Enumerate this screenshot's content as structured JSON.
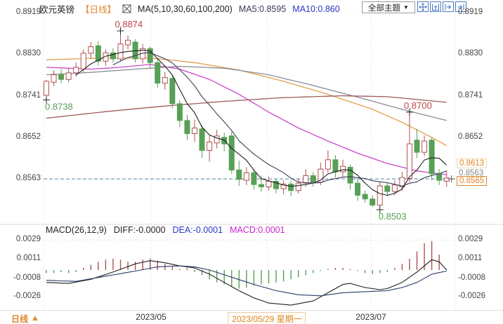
{
  "header": {
    "symbol": "欧元英镑",
    "period_tag": "【日线】",
    "ma_settings": "MA(5,10,30,60,100,200)",
    "ma5_label": "MA5:0.8595",
    "ma10_label": "MA10:0.860",
    "theme_selector": "全部主题",
    "theme_arrow": "▼"
  },
  "toolbar_icons": [
    "crosshair-move-icon",
    "zoom-fit-icon",
    "pan-right-icon",
    "jump-latest-icon"
  ],
  "bottom_bar": {
    "period": "日线",
    "arrow": "▲"
  },
  "x_axis": {
    "ticks": [
      {
        "text": "2023/05",
        "style": "normal"
      },
      {
        "text": "2023/05/29 星期一",
        "style": "selected"
      },
      {
        "text": "2023/07",
        "style": "normal"
      }
    ]
  },
  "chart_data": [
    {
      "type": "candlestick",
      "title": "欧元英镑 日线",
      "ylim": [
        0.8495,
        0.894
      ],
      "y_ticks": [
        "0.8919",
        "0.8830",
        "0.8741",
        "0.8652",
        "0.8563"
      ],
      "right_ticks": [
        "0.8919",
        "0.8830",
        "0.8741",
        "0.8652"
      ],
      "price_tags": [
        {
          "text": "0.8613",
          "style": "tag-orange"
        },
        {
          "text": "0.8563",
          "style": "tag-gray"
        },
        {
          "text": "0.8565",
          "style": "tag-box"
        }
      ],
      "dashed_level": 0.8563,
      "colors": {
        "up": "#b05050",
        "down": "#57a057",
        "dashed": "#4f81a8",
        "accent": "#e0862a"
      },
      "annotations": [
        {
          "text": "0.8874",
          "color": "#c24444",
          "i": 10,
          "v": 0.8874,
          "pos": "above"
        },
        {
          "text": "0.8738",
          "color": "#57a057",
          "i": 0,
          "v": 0.8738,
          "pos": "below"
        },
        {
          "text": "0.8700",
          "color": "#c24444",
          "i": 49,
          "v": 0.87,
          "pos": "above"
        },
        {
          "text": "0.8503",
          "color": "#57a057",
          "i": 45,
          "v": 0.8503,
          "pos": "below"
        }
      ],
      "candles": [
        [
          0.8742,
          0.8775,
          0.8738,
          0.8772
        ],
        [
          0.877,
          0.8795,
          0.8762,
          0.8786
        ],
        [
          0.8786,
          0.8798,
          0.8768,
          0.8776
        ],
        [
          0.8776,
          0.88,
          0.877,
          0.879
        ],
        [
          0.879,
          0.8812,
          0.8782,
          0.8802
        ],
        [
          0.8798,
          0.884,
          0.8792,
          0.8832
        ],
        [
          0.8832,
          0.8856,
          0.882,
          0.8846
        ],
        [
          0.8848,
          0.8858,
          0.8806,
          0.8815
        ],
        [
          0.8815,
          0.884,
          0.8805,
          0.8833
        ],
        [
          0.8833,
          0.8843,
          0.8812,
          0.882
        ],
        [
          0.882,
          0.8874,
          0.8815,
          0.8852
        ],
        [
          0.885,
          0.887,
          0.884,
          0.886
        ],
        [
          0.8856,
          0.8862,
          0.8812,
          0.882
        ],
        [
          0.882,
          0.8852,
          0.881,
          0.8842
        ],
        [
          0.8842,
          0.8846,
          0.88,
          0.8812
        ],
        [
          0.8812,
          0.882,
          0.8758,
          0.8768
        ],
        [
          0.8768,
          0.8792,
          0.8754,
          0.878
        ],
        [
          0.8778,
          0.8785,
          0.8714,
          0.8724
        ],
        [
          0.8724,
          0.8732,
          0.8674,
          0.8688
        ],
        [
          0.8688,
          0.87,
          0.8646,
          0.866
        ],
        [
          0.866,
          0.869,
          0.8642,
          0.8672
        ],
        [
          0.867,
          0.8678,
          0.8608,
          0.8624
        ],
        [
          0.8624,
          0.8656,
          0.86,
          0.8642
        ],
        [
          0.864,
          0.8668,
          0.8628,
          0.8655
        ],
        [
          0.8652,
          0.8662,
          0.8622,
          0.8638
        ],
        [
          0.8655,
          0.8664,
          0.8574,
          0.8582
        ],
        [
          0.8582,
          0.8602,
          0.8548,
          0.8562
        ],
        [
          0.856,
          0.8588,
          0.855,
          0.8576
        ],
        [
          0.8576,
          0.8584,
          0.854,
          0.8551
        ],
        [
          0.8551,
          0.857,
          0.8536,
          0.8546
        ],
        [
          0.8546,
          0.8568,
          0.8538,
          0.8558
        ],
        [
          0.8558,
          0.8564,
          0.8532,
          0.8542
        ],
        [
          0.8542,
          0.856,
          0.853,
          0.8552
        ],
        [
          0.8552,
          0.8558,
          0.8526,
          0.8538
        ],
        [
          0.8538,
          0.8564,
          0.8532,
          0.8554
        ],
        [
          0.8554,
          0.8584,
          0.8546,
          0.857
        ],
        [
          0.857,
          0.8578,
          0.8546,
          0.8556
        ],
        [
          0.8556,
          0.8598,
          0.855,
          0.8584
        ],
        [
          0.8584,
          0.8624,
          0.8576,
          0.8604
        ],
        [
          0.8604,
          0.8614,
          0.8566,
          0.8578
        ],
        [
          0.8578,
          0.8604,
          0.8568,
          0.859
        ],
        [
          0.8588,
          0.8594,
          0.854,
          0.8554
        ],
        [
          0.8554,
          0.8564,
          0.8516,
          0.8528
        ],
        [
          0.853,
          0.8538,
          0.8512,
          0.852
        ],
        [
          0.852,
          0.8528,
          0.8503,
          0.8507
        ],
        [
          0.8507,
          0.8556,
          0.8503,
          0.8548
        ],
        [
          0.8548,
          0.8556,
          0.8526,
          0.8536
        ],
        [
          0.8536,
          0.856,
          0.8528,
          0.855
        ],
        [
          0.8546,
          0.8578,
          0.8538,
          0.8566
        ],
        [
          0.8564,
          0.87,
          0.8556,
          0.8638
        ],
        [
          0.8646,
          0.867,
          0.8608,
          0.862
        ],
        [
          0.862,
          0.8656,
          0.8612,
          0.8644
        ],
        [
          0.8646,
          0.8652,
          0.856,
          0.8574
        ],
        [
          0.8574,
          0.8584,
          0.855,
          0.856
        ],
        [
          0.8558,
          0.858,
          0.8546,
          0.8565
        ]
      ],
      "ma_lines": [
        {
          "name": "MA30",
          "color": "#cc44cc",
          "points": [
            [
              0,
              0.8802
            ],
            [
              6,
              0.8798
            ],
            [
              10,
              0.8802
            ],
            [
              14,
              0.8808
            ],
            [
              18,
              0.8798
            ],
            [
              22,
              0.8776
            ],
            [
              26,
              0.8744
            ],
            [
              30,
              0.8706
            ],
            [
              34,
              0.8672
            ],
            [
              38,
              0.8644
            ],
            [
              42,
              0.8618
            ],
            [
              46,
              0.8596
            ],
            [
              50,
              0.858
            ],
            [
              54,
              0.8572
            ]
          ]
        },
        {
          "name": "MA60",
          "color": "#e0a048",
          "points": [
            [
              0,
              0.8818
            ],
            [
              8,
              0.8822
            ],
            [
              14,
              0.8822
            ],
            [
              20,
              0.8812
            ],
            [
              26,
              0.8796
            ],
            [
              32,
              0.8772
            ],
            [
              38,
              0.8744
            ],
            [
              44,
              0.8712
            ],
            [
              48,
              0.8684
            ],
            [
              52,
              0.8652
            ],
            [
              54,
              0.8634
            ]
          ]
        },
        {
          "name": "MA100",
          "color": "#8a8a96",
          "points": [
            [
              0,
              0.8786
            ],
            [
              6,
              0.8791
            ],
            [
              12,
              0.8798
            ],
            [
              18,
              0.8804
            ],
            [
              24,
              0.88
            ],
            [
              30,
              0.8786
            ],
            [
              36,
              0.8763
            ],
            [
              42,
              0.8738
            ],
            [
              48,
              0.8712
            ],
            [
              52,
              0.8696
            ],
            [
              54,
              0.8688
            ]
          ]
        },
        {
          "name": "MA200",
          "color": "#a05a5a",
          "points": [
            [
              0,
              0.8693
            ],
            [
              8,
              0.8707
            ],
            [
              16,
              0.8719
            ],
            [
              24,
              0.8729
            ],
            [
              32,
              0.8737
            ],
            [
              40,
              0.8741
            ],
            [
              46,
              0.8739
            ],
            [
              50,
              0.8733
            ],
            [
              54,
              0.8727
            ]
          ]
        }
      ]
    },
    {
      "type": "macd",
      "params": "MACD(26,12,9)",
      "labels": {
        "diff": "DIFF:-0.0000",
        "dea": "DEA:-0.0001",
        "macd": "MACD:0.0001"
      },
      "y_ticks": [
        "0.0029",
        "0.0011",
        "-0.0008",
        "-0.0026"
      ],
      "histogram": [
        -3,
        -3,
        -2,
        -3,
        -2,
        2,
        5,
        8,
        10,
        11,
        10,
        8,
        8,
        10,
        11,
        9,
        6,
        3,
        1,
        2,
        -2,
        -5,
        -9,
        -12,
        -14,
        -16,
        -18,
        -17,
        -15,
        -14,
        -13,
        -12,
        -11,
        -9,
        -7,
        -5,
        -3,
        -1,
        1,
        2,
        2,
        1,
        -1,
        -3,
        -4,
        -3,
        -2,
        2,
        6,
        11,
        18,
        26,
        28,
        15,
        1
      ],
      "diff_points": [
        [
          0,
          -12
        ],
        [
          3,
          -13
        ],
        [
          6,
          -9
        ],
        [
          9,
          -2
        ],
        [
          12,
          6
        ],
        [
          14,
          9
        ],
        [
          16,
          7
        ],
        [
          18,
          4
        ],
        [
          20,
          2
        ],
        [
          22,
          -4
        ],
        [
          24,
          -12
        ],
        [
          26,
          -20
        ],
        [
          28,
          -27
        ],
        [
          30,
          -32
        ],
        [
          33,
          -34
        ],
        [
          36,
          -30
        ],
        [
          38,
          -22
        ],
        [
          40,
          -14
        ],
        [
          41,
          -13
        ],
        [
          43,
          -17
        ],
        [
          45,
          -19
        ],
        [
          46,
          -18
        ],
        [
          48,
          -12
        ],
        [
          50,
          -2
        ],
        [
          52,
          10
        ],
        [
          53,
          8
        ],
        [
          54,
          0
        ]
      ],
      "dea_points": [
        [
          0,
          -10
        ],
        [
          4,
          -11
        ],
        [
          8,
          -6
        ],
        [
          12,
          -1
        ],
        [
          15,
          3
        ],
        [
          18,
          4
        ],
        [
          20,
          3
        ],
        [
          22,
          0
        ],
        [
          25,
          -7
        ],
        [
          28,
          -14
        ],
        [
          31,
          -20
        ],
        [
          34,
          -24
        ],
        [
          37,
          -25
        ],
        [
          40,
          -22
        ],
        [
          43,
          -21
        ],
        [
          46,
          -20
        ],
        [
          48,
          -17
        ],
        [
          50,
          -12
        ],
        [
          52,
          -4
        ],
        [
          54,
          -1
        ]
      ]
    }
  ]
}
